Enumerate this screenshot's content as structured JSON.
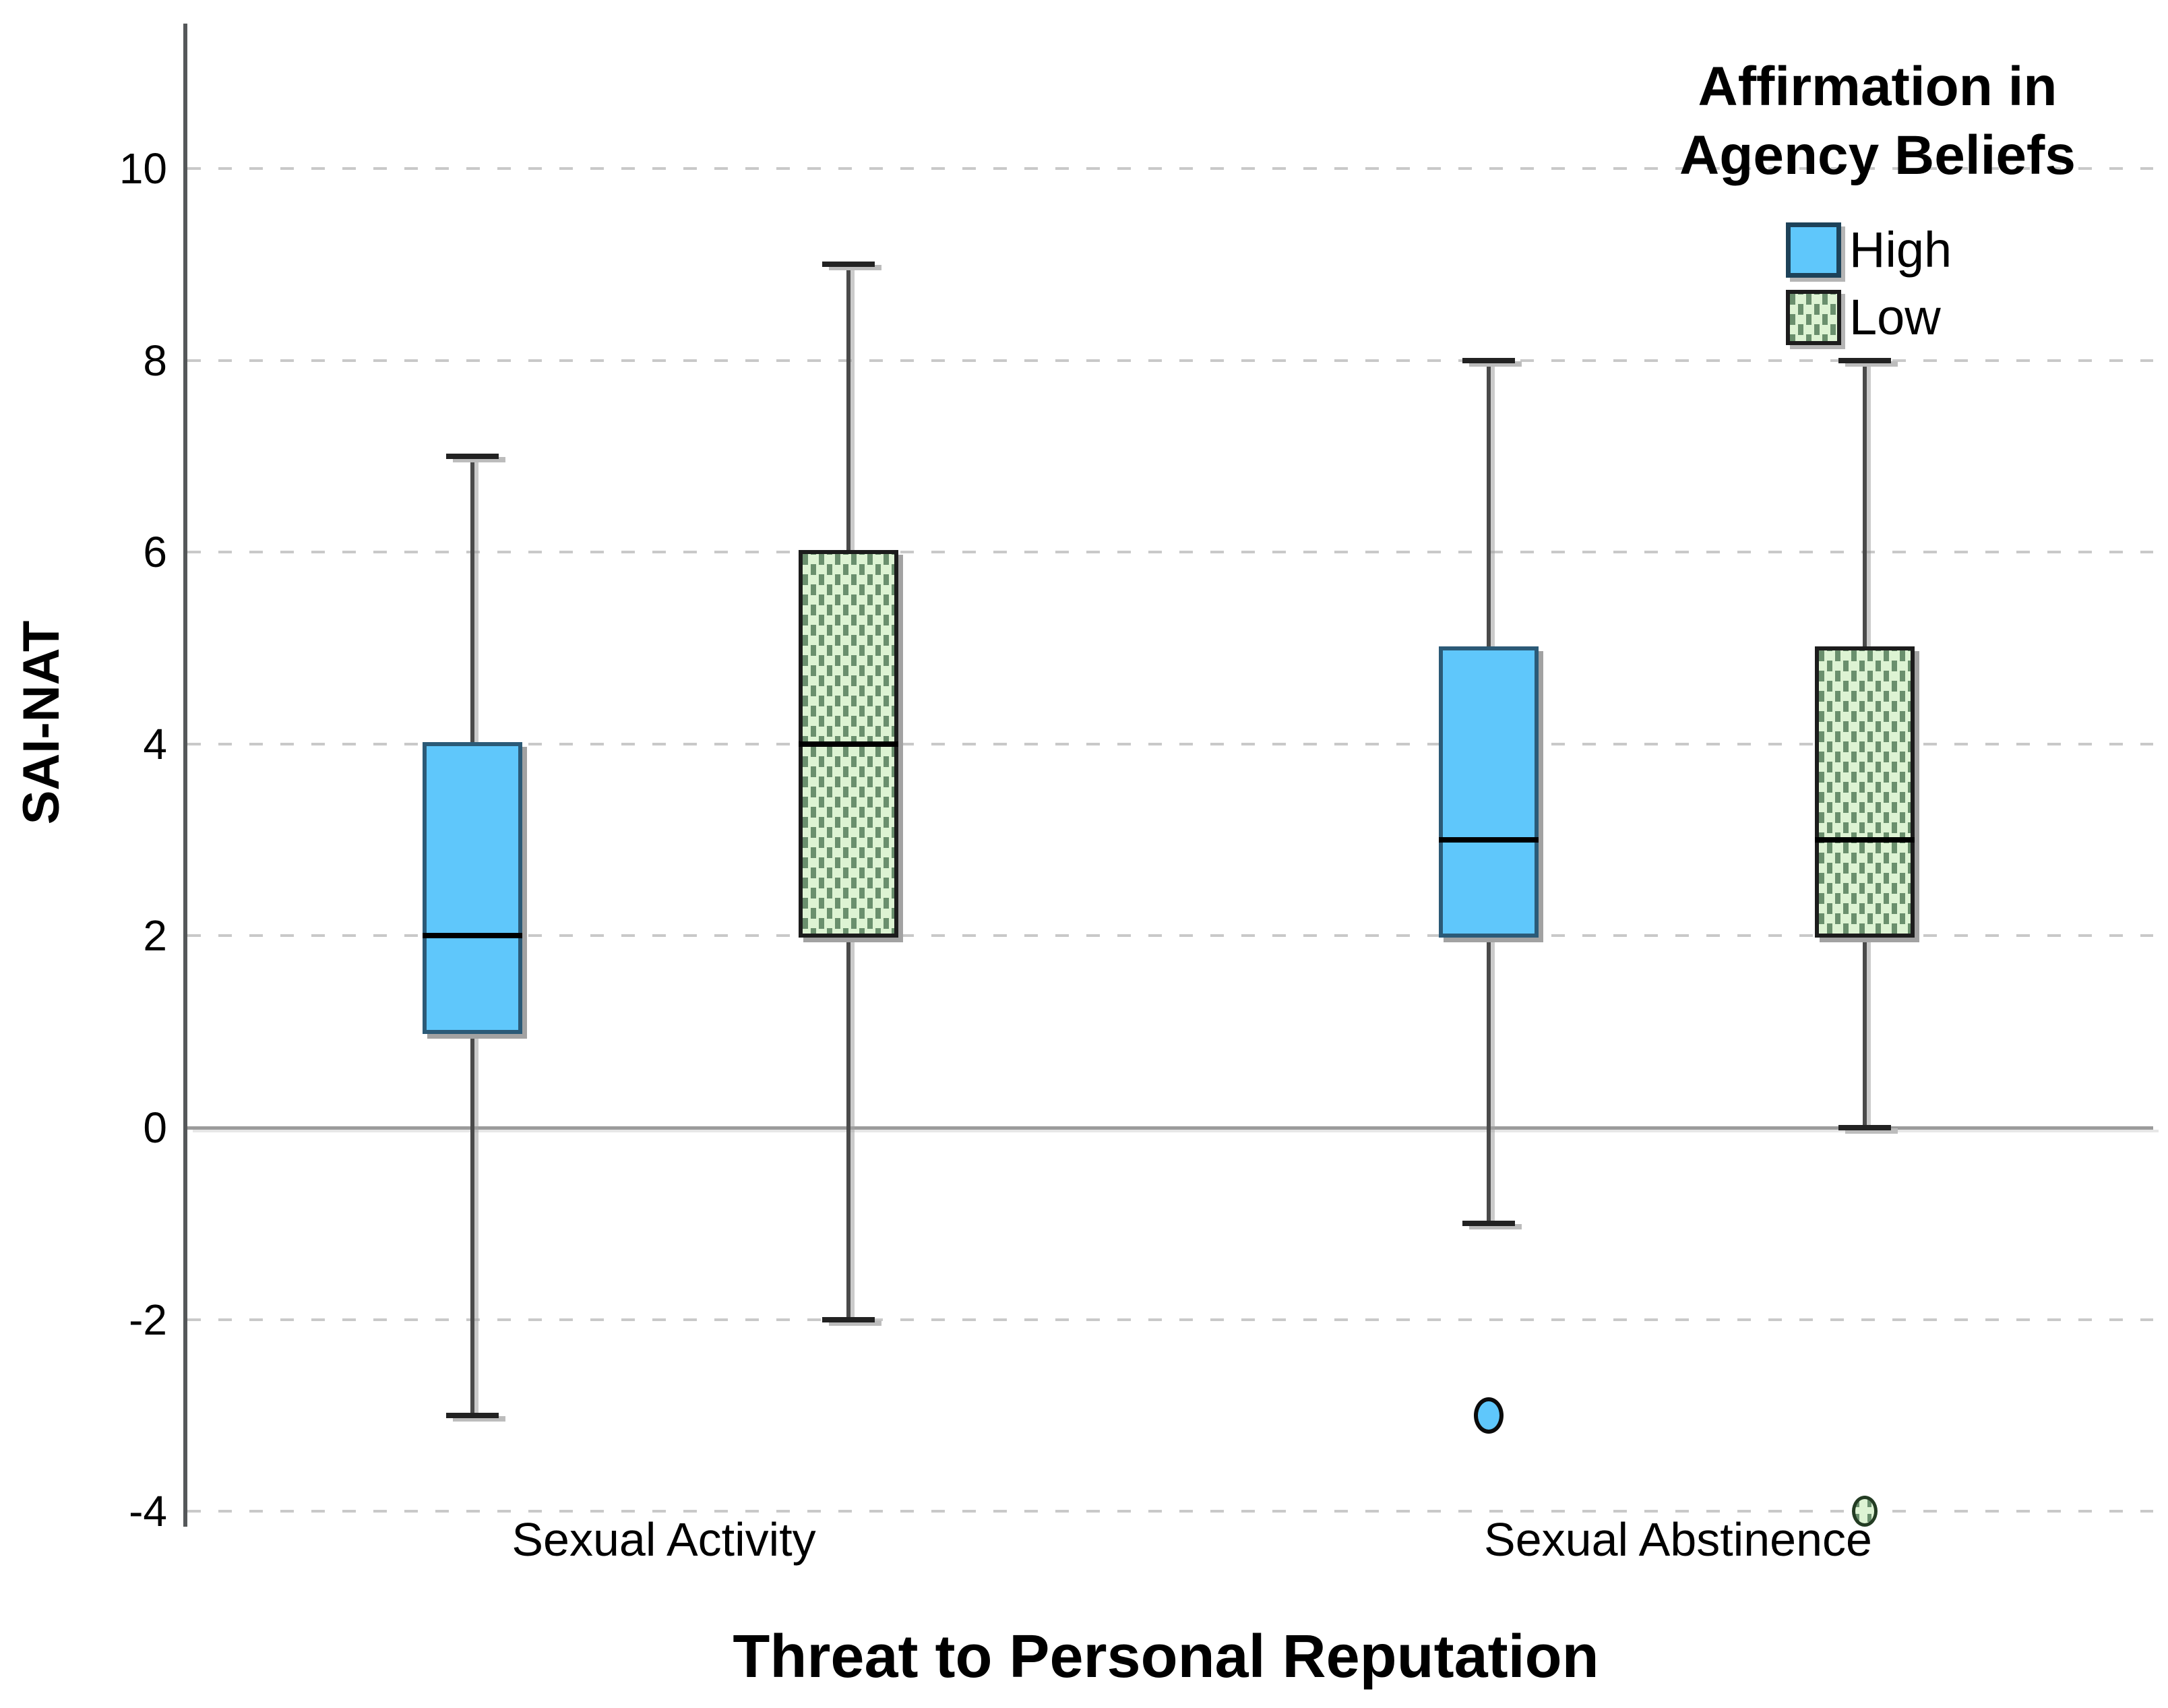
{
  "chart_data": {
    "type": "boxplot",
    "xlabel": "Threat to Personal Reputation",
    "ylabel": "SAI-NAT",
    "categories": [
      "Sexual Activity",
      "Sexual Abstinence"
    ],
    "y_axis": {
      "ticks": [
        10,
        8,
        6,
        4,
        2,
        0,
        -2,
        -4
      ],
      "min": -4,
      "max": 10,
      "zero_reference_line": true,
      "grid": "dashed"
    },
    "legend": {
      "title_lines": [
        "Affirmation in",
        "Agency Beliefs"
      ],
      "entries": [
        {
          "label": "High",
          "style": "blue"
        },
        {
          "label": "Low",
          "style": "green"
        }
      ],
      "position": "top-right"
    },
    "series": [
      {
        "group": "High",
        "category": "Sexual Activity",
        "whisker_low": -3,
        "q1": 1,
        "median": 2,
        "q3": 4,
        "whisker_high": 7,
        "outliers": [],
        "style": "blue"
      },
      {
        "group": "Low",
        "category": "Sexual Activity",
        "whisker_low": -2,
        "q1": 2,
        "median": 4,
        "q3": 6,
        "whisker_high": 9,
        "outliers": [],
        "style": "green"
      },
      {
        "group": "High",
        "category": "Sexual Abstinence",
        "whisker_low": -1,
        "q1": 2,
        "median": 3,
        "q3": 5,
        "whisker_high": 8,
        "outliers": [
          -3
        ],
        "style": "blue"
      },
      {
        "group": "Low",
        "category": "Sexual Abstinence",
        "whisker_low": 0,
        "q1": 2,
        "median": 3,
        "q3": 5,
        "whisker_high": 8,
        "outliers": [
          -4
        ],
        "style": "green"
      }
    ],
    "colors": {
      "high_fill": "#5fc7fb",
      "high_border": "#2b5a77",
      "low_fill": "#ddf3d3",
      "low_pattern_dot": "#6a8f6d",
      "low_border": "#1c1c1c",
      "grid": "#c9c9c9",
      "zero_line": "#9b9b9b",
      "axis": "#55585a",
      "median": "#000000"
    }
  }
}
